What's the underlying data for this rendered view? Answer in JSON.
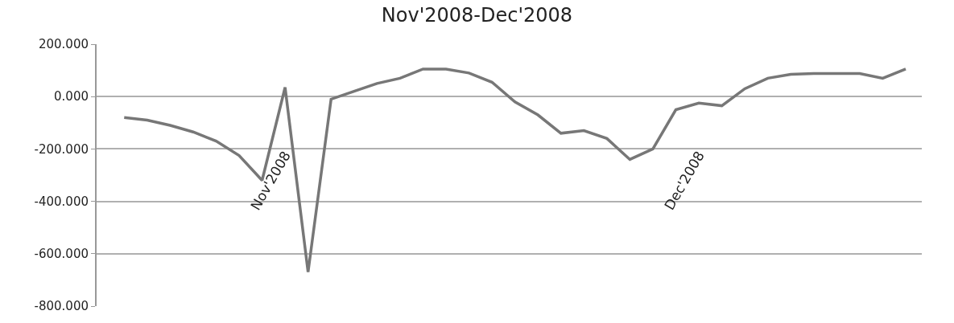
{
  "chart_data": {
    "type": "line",
    "title": "Nov'2008-Dec'2008",
    "categories": [
      null,
      null,
      null,
      null,
      null,
      null,
      null,
      "Nov'2008",
      null,
      null,
      null,
      null,
      null,
      null,
      null,
      null,
      null,
      null,
      null,
      null,
      null,
      null,
      null,
      null,
      null,
      "Dec'2008",
      null,
      null,
      null,
      null,
      null,
      null,
      null,
      null,
      null
    ],
    "series": [
      {
        "color": "#777777",
        "values": [
          -80,
          -90,
          -110,
          -135,
          -170,
          -225,
          -320,
          35,
          -670,
          -10,
          20,
          50,
          70,
          105,
          105,
          90,
          55,
          -20,
          -70,
          -140,
          -130,
          -160,
          -240,
          -200,
          -50,
          -25,
          -35,
          30,
          70,
          85,
          88,
          88,
          88,
          70,
          105
        ]
      }
    ],
    "ylim": [
      -800,
      200
    ],
    "yticks": [
      {
        "value": -800,
        "label": "-800.000"
      },
      {
        "value": -600,
        "label": "-600.000"
      },
      {
        "value": -400,
        "label": "-400.000"
      },
      {
        "value": -200,
        "label": "-200.000"
      },
      {
        "value": 0,
        "label": "0.000"
      },
      {
        "value": 200,
        "label": "200.000"
      }
    ],
    "grid": "y",
    "legend": false,
    "marker": "none",
    "line_style": "solid"
  }
}
